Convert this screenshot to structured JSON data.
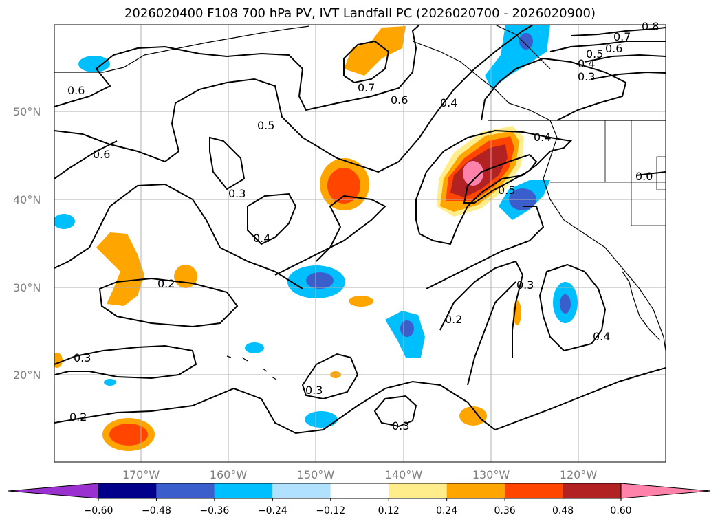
{
  "title": "2026020400 F108 700 hPa PV, IVT Landfall PC (2026020700 - 2026020900)",
  "latitude_labels": [
    "50°N",
    "40°N",
    "30°N",
    "20°N"
  ],
  "longitude_labels": [
    "170°W",
    "160°W",
    "150°W",
    "140°W",
    "130°W",
    "120°W"
  ],
  "contour_labels": [
    "0.8",
    "0.7",
    "0.6",
    "0.5",
    "0.4",
    "0.3",
    "0.6",
    "0.7",
    "0.6",
    "0.4",
    "0.5",
    "0.6",
    "0.3",
    "0.4",
    "0.5",
    "0.4",
    "0.2",
    "0.3",
    "0.2",
    "0.3",
    "0.4",
    "0.3",
    "0.3",
    "0.2",
    "0.0"
  ],
  "colorbar": {
    "ticks": [
      "−0.60",
      "−0.48",
      "−0.36",
      "−0.24",
      "−0.12",
      "0.12",
      "0.24",
      "0.36",
      "0.48",
      "0.60"
    ],
    "colors": [
      "#9b30d0",
      "#00008b",
      "#3a5fcd",
      "#00bfff",
      "#b0e2ff",
      "#ffffff",
      "#ffec8b",
      "#ffa500",
      "#ff4500",
      "#b22222",
      "#ff82ab"
    ]
  }
}
